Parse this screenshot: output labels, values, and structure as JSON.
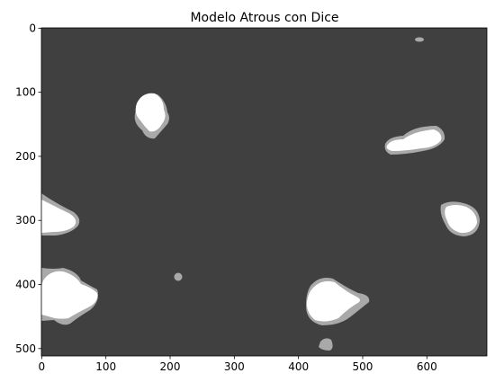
{
  "chart_data": {
    "type": "image",
    "title": "Modelo Atrous con Dice",
    "xlim": [
      -0.5,
      693.5
    ],
    "ylim": [
      511.5,
      -0.5
    ],
    "xticks": [
      0,
      100,
      200,
      300,
      400,
      500,
      600
    ],
    "yticks": [
      0,
      100,
      200,
      300,
      400,
      500
    ]
  }
}
